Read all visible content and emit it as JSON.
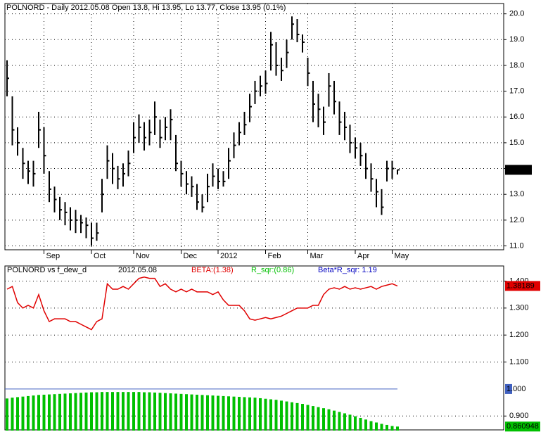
{
  "chart_data": [
    {
      "type": "ohlc",
      "title": "POLNORD - Daily 2012.05.08 Open 13.8, Hi 13.95, Lo 13.77, Close 13.95 (0.1%)",
      "categories": [
        null,
        null,
        null,
        null,
        null,
        null,
        null,
        "Sep",
        null,
        null,
        null,
        null,
        null,
        null,
        null,
        null,
        "Oct",
        null,
        null,
        null,
        null,
        null,
        null,
        null,
        "Nov",
        null,
        null,
        null,
        null,
        null,
        null,
        null,
        null,
        "Dec",
        null,
        null,
        null,
        null,
        null,
        null,
        "2012",
        null,
        null,
        null,
        null,
        null,
        null,
        null,
        null,
        "Feb",
        null,
        null,
        null,
        null,
        null,
        null,
        null,
        "Mar",
        null,
        null,
        null,
        null,
        null,
        null,
        null,
        null,
        "Apr",
        null,
        null,
        null,
        null,
        null,
        null,
        "May",
        null
      ],
      "high": [
        18.2,
        16.8,
        15.6,
        14.8,
        14.3,
        14.3,
        16.2,
        15.6,
        13.9,
        13.3,
        12.9,
        12.7,
        12.5,
        12.4,
        12.2,
        12.1,
        11.9,
        11.9,
        13.6,
        14.9,
        14.6,
        14.1,
        14.2,
        14.7,
        15.8,
        16.1,
        15.8,
        15.9,
        16.6,
        15.9,
        16.0,
        16.3,
        15.3,
        14.3,
        13.9,
        13.7,
        13.4,
        13.0,
        13.8,
        14.2,
        14.0,
        13.9,
        14.8,
        15.4,
        15.8,
        16.2,
        16.9,
        17.4,
        17.6,
        17.8,
        19.3,
        18.9,
        18.3,
        19.0,
        19.9,
        19.8,
        19.2,
        18.3,
        17.4,
        16.9,
        16.4,
        17.7,
        17.4,
        16.6,
        16.2,
        15.7,
        15.2,
        15.0,
        14.6,
        14.2,
        13.6,
        13.2,
        14.3,
        14.3,
        13.95
      ],
      "low": [
        16.8,
        14.9,
        14.5,
        13.6,
        13.4,
        13.3,
        14.8,
        13.8,
        12.7,
        12.3,
        12.0,
        11.8,
        11.6,
        11.5,
        11.5,
        11.3,
        11.0,
        11.2,
        12.3,
        13.6,
        13.4,
        13.2,
        13.3,
        13.7,
        14.6,
        15.0,
        14.7,
        14.9,
        15.3,
        14.8,
        15.1,
        15.1,
        13.9,
        13.3,
        13.0,
        12.9,
        12.4,
        12.3,
        12.7,
        13.3,
        13.2,
        13.3,
        13.6,
        14.4,
        14.9,
        15.3,
        15.8,
        16.5,
        16.8,
        16.9,
        17.8,
        17.6,
        17.4,
        17.9,
        19.0,
        18.9,
        18.5,
        17.2,
        15.8,
        15.6,
        15.3,
        16.4,
        16.1,
        15.3,
        15.1,
        14.6,
        14.4,
        14.1,
        13.6,
        13.1,
        12.5,
        12.2,
        13.5,
        13.6,
        13.77
      ],
      "close": [
        17.5,
        15.5,
        15.0,
        14.2,
        13.9,
        13.8,
        15.5,
        14.5,
        13.2,
        12.8,
        12.4,
        12.3,
        12.0,
        12.0,
        11.9,
        11.8,
        11.3,
        11.5,
        13.0,
        14.3,
        14.0,
        13.6,
        13.8,
        14.2,
        15.2,
        15.6,
        15.2,
        15.4,
        16.0,
        15.2,
        15.6,
        15.9,
        14.2,
        13.8,
        13.4,
        13.3,
        12.7,
        12.5,
        13.3,
        13.7,
        13.5,
        13.5,
        14.3,
        14.9,
        15.4,
        15.7,
        16.4,
        17.0,
        17.2,
        17.3,
        18.8,
        18.0,
        17.8,
        18.5,
        19.6,
        19.2,
        18.9,
        17.7,
        16.5,
        16.3,
        15.8,
        17.2,
        16.6,
        15.8,
        15.6,
        15.0,
        14.8,
        14.5,
        14.0,
        13.6,
        13.1,
        12.5,
        14.0,
        14.0,
        13.95
      ],
      "color": "#000000",
      "ylim": [
        10.85,
        20.4
      ],
      "yticks": [
        {
          "value": 11,
          "label": "11.0"
        },
        {
          "value": 12,
          "label": "12.0"
        },
        {
          "value": 13,
          "label": "13.0"
        },
        {
          "value": 14,
          "label": "14.0"
        },
        {
          "value": 15,
          "label": "15.0"
        },
        {
          "value": 16,
          "label": "16.0"
        },
        {
          "value": 17,
          "label": "17.0"
        },
        {
          "value": 18,
          "label": "18.0"
        },
        {
          "value": 19,
          "label": "19.0"
        },
        {
          "value": 20,
          "label": "20.0"
        }
      ],
      "grid": true
    },
    {
      "type": "combo",
      "title": "POLNORD vs f_dew_d",
      "date": "2012.05.08",
      "annotation": "Beta*R_sqr: 1.19",
      "annotation_color": "#0000c0",
      "series": [
        {
          "name": "BETA:(1.38)",
          "color": "#e00000",
          "kind": "line",
          "values": [
            1.37,
            1.38,
            1.32,
            1.3,
            1.31,
            1.3,
            1.35,
            1.29,
            1.25,
            1.26,
            1.26,
            1.26,
            1.25,
            1.25,
            1.24,
            1.23,
            1.22,
            1.25,
            1.26,
            1.39,
            1.37,
            1.37,
            1.38,
            1.37,
            1.39,
            1.41,
            1.415,
            1.41,
            1.41,
            1.38,
            1.39,
            1.37,
            1.36,
            1.37,
            1.36,
            1.37,
            1.36,
            1.36,
            1.36,
            1.35,
            1.36,
            1.33,
            1.31,
            1.31,
            1.31,
            1.29,
            1.26,
            1.255,
            1.26,
            1.265,
            1.26,
            1.265,
            1.27,
            1.28,
            1.29,
            1.3,
            1.3,
            1.3,
            1.31,
            1.31,
            1.35,
            1.37,
            1.375,
            1.37,
            1.38,
            1.37,
            1.375,
            1.37,
            1.375,
            1.38,
            1.37,
            1.38,
            1.385,
            1.39,
            1.38189
          ]
        },
        {
          "name": "R_sqr:(0.86)",
          "color": "#00c000",
          "kind": "bar",
          "values": [
            0.965,
            0.968,
            0.97,
            0.972,
            0.974,
            0.976,
            0.978,
            0.979,
            0.98,
            0.981,
            0.982,
            0.983,
            0.984,
            0.985,
            0.986,
            0.987,
            0.988,
            0.988,
            0.989,
            0.989,
            0.989,
            0.989,
            0.989,
            0.989,
            0.989,
            0.989,
            0.988,
            0.988,
            0.987,
            0.986,
            0.985,
            0.984,
            0.983,
            0.982,
            0.981,
            0.98,
            0.979,
            0.978,
            0.977,
            0.976,
            0.975,
            0.974,
            0.973,
            0.972,
            0.971,
            0.97,
            0.969,
            0.968,
            0.966,
            0.964,
            0.962,
            0.96,
            0.957,
            0.954,
            0.951,
            0.948,
            0.945,
            0.941,
            0.937,
            0.933,
            0.929,
            0.925,
            0.92,
            0.915,
            0.91,
            0.905,
            0.899,
            0.893,
            0.887,
            0.881,
            0.876,
            0.871,
            0.867,
            0.863,
            0.860948
          ]
        }
      ],
      "reference_line": {
        "value": 1,
        "label": "1.000",
        "color": "#4060c0"
      },
      "ylim": [
        0.846,
        1.456
      ],
      "yticks": [
        {
          "value": 0.9,
          "label": "0.900"
        },
        {
          "value": 1.1,
          "label": "1.100"
        },
        {
          "value": 1.2,
          "label": "1.200"
        },
        {
          "value": 1.3,
          "label": "1.300"
        },
        {
          "value": 1.4,
          "label": "1.400"
        }
      ],
      "grid": true
    }
  ]
}
